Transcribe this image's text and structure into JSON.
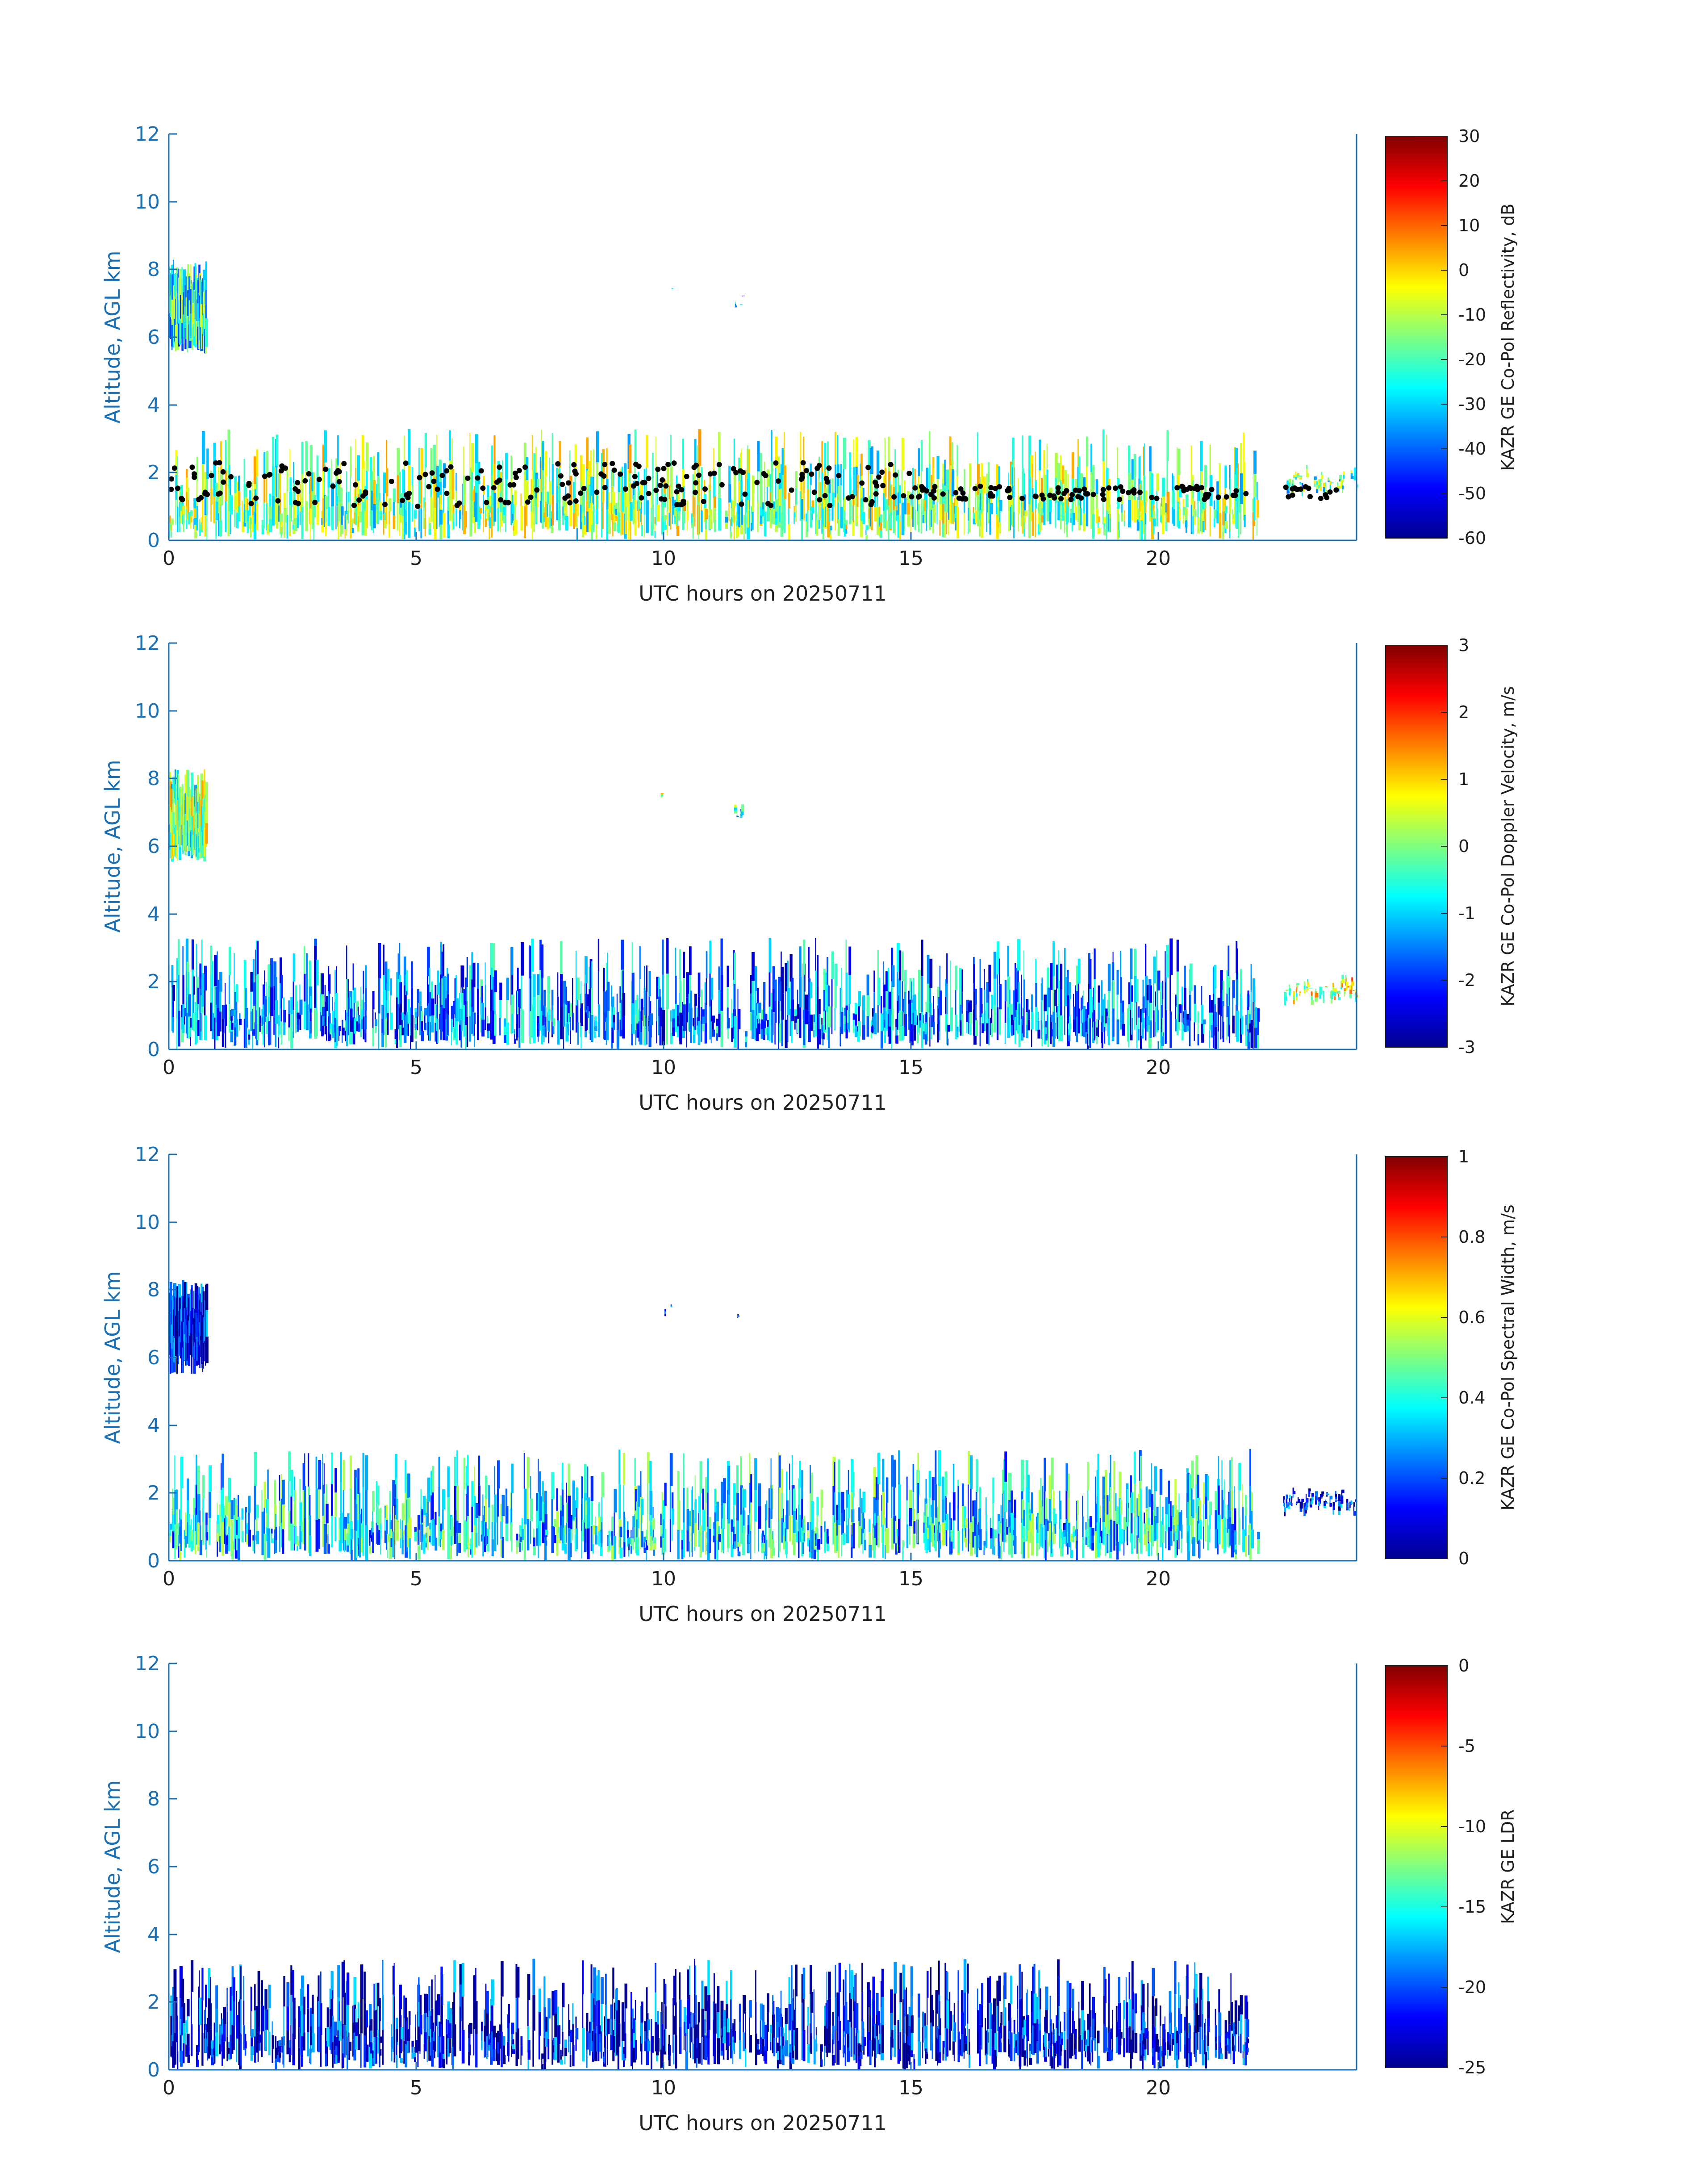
{
  "colors": {
    "axis_blue": "#1a6fb3",
    "text": "#1f1f1f",
    "marker": "#000000",
    "colormap": [
      "#00008f",
      "#0000ff",
      "#0080ff",
      "#00ffff",
      "#80ff80",
      "#ffff00",
      "#ff8000",
      "#ff0000",
      "#800000"
    ]
  },
  "chart_data": [
    {
      "type": "heatmap",
      "variable": "KAZR GE Co-Pol Reflectivity, dB",
      "xlabel": "UTC hours on 20250711",
      "ylabel": "Altitude, AGL km",
      "xlim": [
        0,
        24
      ],
      "ylim": [
        0,
        12
      ],
      "xticks": [
        "0",
        "5",
        "10",
        "15",
        "20"
      ],
      "yticks": [
        "0",
        "2",
        "4",
        "6",
        "8",
        "10",
        "12"
      ],
      "colorbar": {
        "label": "KAZR GE Co-Pol Reflectivity, dB",
        "range": [
          -60,
          30
        ],
        "ticks": [
          "30",
          "20",
          "10",
          "0",
          "-10",
          "-20",
          "-30",
          "-40",
          "-50",
          "-60"
        ]
      },
      "overlay": "cloud-base height points (black dots)",
      "features": [
        {
          "kind": "cloud",
          "t_start": 0.0,
          "t_end": 0.75,
          "alt_base": 5.5,
          "alt_top": 8.3,
          "value_typical": -25
        },
        {
          "kind": "cloud",
          "t_start": 9.9,
          "t_end": 10.2,
          "alt_base": 7.2,
          "alt_top": 7.6,
          "value_typical": -25
        },
        {
          "kind": "cloud",
          "t_start": 11.4,
          "t_end": 11.6,
          "alt_base": 6.8,
          "alt_top": 7.3,
          "value_typical": -30
        },
        {
          "kind": "boundary-layer",
          "t_start": 0.0,
          "t_end": 22.0,
          "alt_base": 0.0,
          "alt_top": 3.2,
          "value_typical": -15
        },
        {
          "kind": "boundary-layer",
          "t_start": 22.5,
          "t_end": 24.0,
          "alt_base": 1.3,
          "alt_top": 1.6,
          "value_typical": -20
        }
      ]
    },
    {
      "type": "heatmap",
      "variable": "KAZR GE Co-Pol Doppler Velocity, m/s",
      "xlabel": "UTC hours on 20250711",
      "ylabel": "Altitude, AGL km",
      "xlim": [
        0,
        24
      ],
      "ylim": [
        0,
        12
      ],
      "xticks": [
        "0",
        "5",
        "10",
        "15",
        "20"
      ],
      "yticks": [
        "0",
        "2",
        "4",
        "6",
        "8",
        "10",
        "12"
      ],
      "colorbar": {
        "label": "KAZR GE Co-Pol Doppler Velocity, m/s",
        "range": [
          -3,
          3
        ],
        "ticks": [
          "3",
          "2",
          "1",
          "0",
          "-1",
          "-2",
          "-3"
        ]
      },
      "features": [
        {
          "kind": "cloud",
          "t_start": 0.0,
          "t_end": 0.75,
          "alt_base": 5.5,
          "alt_top": 8.3,
          "value_typical": 0.0
        },
        {
          "kind": "cloud",
          "t_start": 9.9,
          "t_end": 10.2,
          "alt_base": 7.2,
          "alt_top": 7.6,
          "value_typical": 0.0
        },
        {
          "kind": "cloud",
          "t_start": 11.4,
          "t_end": 11.6,
          "alt_base": 6.8,
          "alt_top": 7.3,
          "value_typical": -0.5
        },
        {
          "kind": "boundary-layer",
          "t_start": 0.0,
          "t_end": 22.0,
          "alt_base": 0.0,
          "alt_top": 3.2,
          "value_typical": -1.5
        },
        {
          "kind": "boundary-layer",
          "t_start": 22.5,
          "t_end": 24.0,
          "alt_base": 1.3,
          "alt_top": 1.6,
          "value_typical": 0.5
        }
      ]
    },
    {
      "type": "heatmap",
      "variable": "KAZR GE Co-Pol Spectral Width, m/s",
      "xlabel": "UTC hours on 20250711",
      "ylabel": "Altitude, AGL km",
      "xlim": [
        0,
        24
      ],
      "ylim": [
        0,
        12
      ],
      "xticks": [
        "0",
        "5",
        "10",
        "15",
        "20"
      ],
      "yticks": [
        "0",
        "2",
        "4",
        "6",
        "8",
        "10",
        "12"
      ],
      "colorbar": {
        "label": "KAZR GE Co-Pol Spectral Width, m/s",
        "range": [
          0,
          1
        ],
        "ticks": [
          "1",
          "0.8",
          "0.6",
          "0.4",
          "0.2",
          "0"
        ]
      },
      "features": [
        {
          "kind": "cloud",
          "t_start": 0.0,
          "t_end": 0.75,
          "alt_base": 5.5,
          "alt_top": 8.3,
          "value_typical": 0.1
        },
        {
          "kind": "cloud",
          "t_start": 9.9,
          "t_end": 10.2,
          "alt_base": 7.2,
          "alt_top": 7.6,
          "value_typical": 0.1
        },
        {
          "kind": "cloud",
          "t_start": 11.4,
          "t_end": 11.6,
          "alt_base": 6.8,
          "alt_top": 7.3,
          "value_typical": 0.15
        },
        {
          "kind": "boundary-layer",
          "t_start": 0.0,
          "t_end": 22.0,
          "alt_base": 0.0,
          "alt_top": 3.2,
          "value_typical": 0.35
        },
        {
          "kind": "boundary-layer",
          "t_start": 22.5,
          "t_end": 24.0,
          "alt_base": 1.3,
          "alt_top": 1.6,
          "value_typical": 0.15
        }
      ]
    },
    {
      "type": "heatmap",
      "variable": "KAZR GE LDR",
      "xlabel": "UTC hours on 20250711",
      "ylabel": "Altitude, AGL km",
      "xlim": [
        0,
        24
      ],
      "ylim": [
        0,
        12
      ],
      "xticks": [
        "0",
        "5",
        "10",
        "15",
        "20"
      ],
      "yticks": [
        "0",
        "2",
        "4",
        "6",
        "8",
        "10",
        "12"
      ],
      "colorbar": {
        "label": "KAZR GE LDR",
        "range": [
          -25,
          0
        ],
        "ticks": [
          "0",
          "-5",
          "-10",
          "-15",
          "-20",
          "-25"
        ]
      },
      "features": [
        {
          "kind": "boundary-layer",
          "t_start": 0.0,
          "t_end": 21.8,
          "alt_base": 0.0,
          "alt_top": 3.2,
          "value_typical": -22
        }
      ]
    }
  ]
}
